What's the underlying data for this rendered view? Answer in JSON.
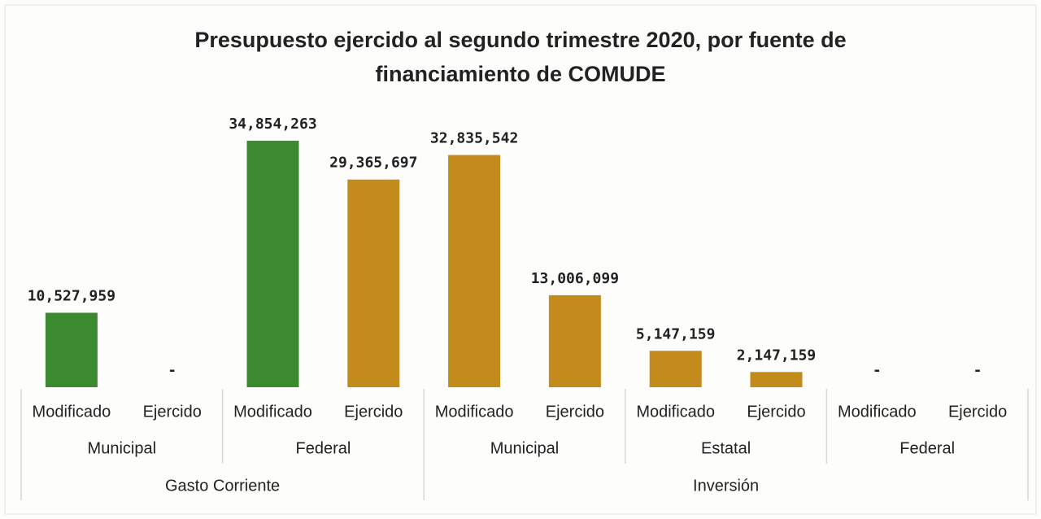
{
  "chart_data": {
    "type": "bar",
    "title": "Presupuesto ejercido al segundo trimestre 2020, por fuente de financiamiento de COMUDE",
    "categories": [
      "Modificado",
      "Ejercido",
      "Modificado",
      "Ejercido",
      "Modificado",
      "Ejercido",
      "Modificado",
      "Ejercido",
      "Modificado",
      "Ejercido"
    ],
    "groups": [
      {
        "name": "Gasto Corriente",
        "subgroups": [
          "Municipal",
          "Federal"
        ]
      },
      {
        "name": "Inversión",
        "subgroups": [
          "Municipal",
          "Estatal",
          "Federal"
        ]
      }
    ],
    "values": [
      10527959,
      0,
      34854263,
      29365697,
      32835542,
      13006099,
      5147159,
      2147159,
      0,
      0
    ],
    "value_labels": [
      "10,527,959",
      "-",
      "34,854,263",
      "29,365,697",
      "32,835,542",
      "13,006,099",
      "5,147,159",
      "2,147,159",
      "-",
      "-"
    ],
    "colors": [
      "#3b8a2f",
      "#3b8a2f",
      "#3b8a2f",
      "#c38a1c",
      "#c38a1c",
      "#c38a1c",
      "#c38a1c",
      "#c38a1c",
      "#c38a1c",
      "#c38a1c"
    ]
  }
}
